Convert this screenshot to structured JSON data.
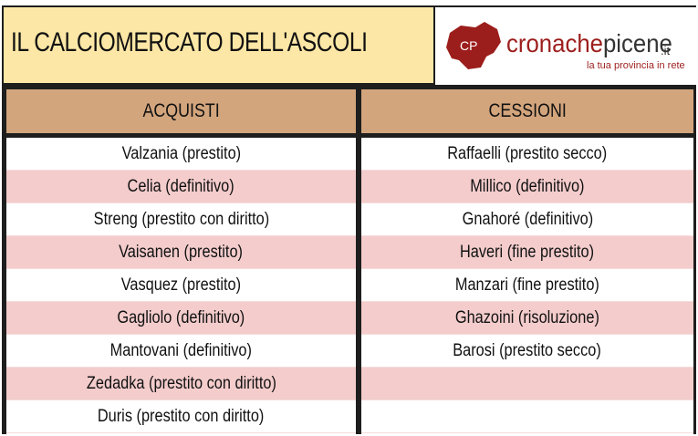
{
  "header": {
    "title": "IL CALCIOMERCATO DELL'ASCOLI",
    "logo": {
      "badge": "CP",
      "word_a": "cronache",
      "word_b": "picene",
      "tld": ".it",
      "tagline": "la tua provincia in rete",
      "color_red": "#9c1e1c"
    }
  },
  "table": {
    "acquisti_label": "ACQUISTI",
    "cessioni_label": "CESSIONI",
    "acquisti": [
      "Valzania (prestito)",
      "Celia (definitivo)",
      "Streng (prestito con diritto)",
      "Vaisanen (prestito)",
      "Vasquez (prestito)",
      "Gagliolo (definitivo)",
      "Mantovani (definitivo)",
      "Zedadka (prestito con diritto)",
      "Duris (prestito con diritto)"
    ],
    "cessioni": [
      "Raffaelli (prestito secco)",
      "Millico (definitivo)",
      "Gnahoré (definitivo)",
      "Haveri (fine prestito)",
      "Manzari (fine prestito)",
      "Ghazoini (risoluzione)",
      "Barosi (prestito secco)",
      "",
      ""
    ]
  }
}
